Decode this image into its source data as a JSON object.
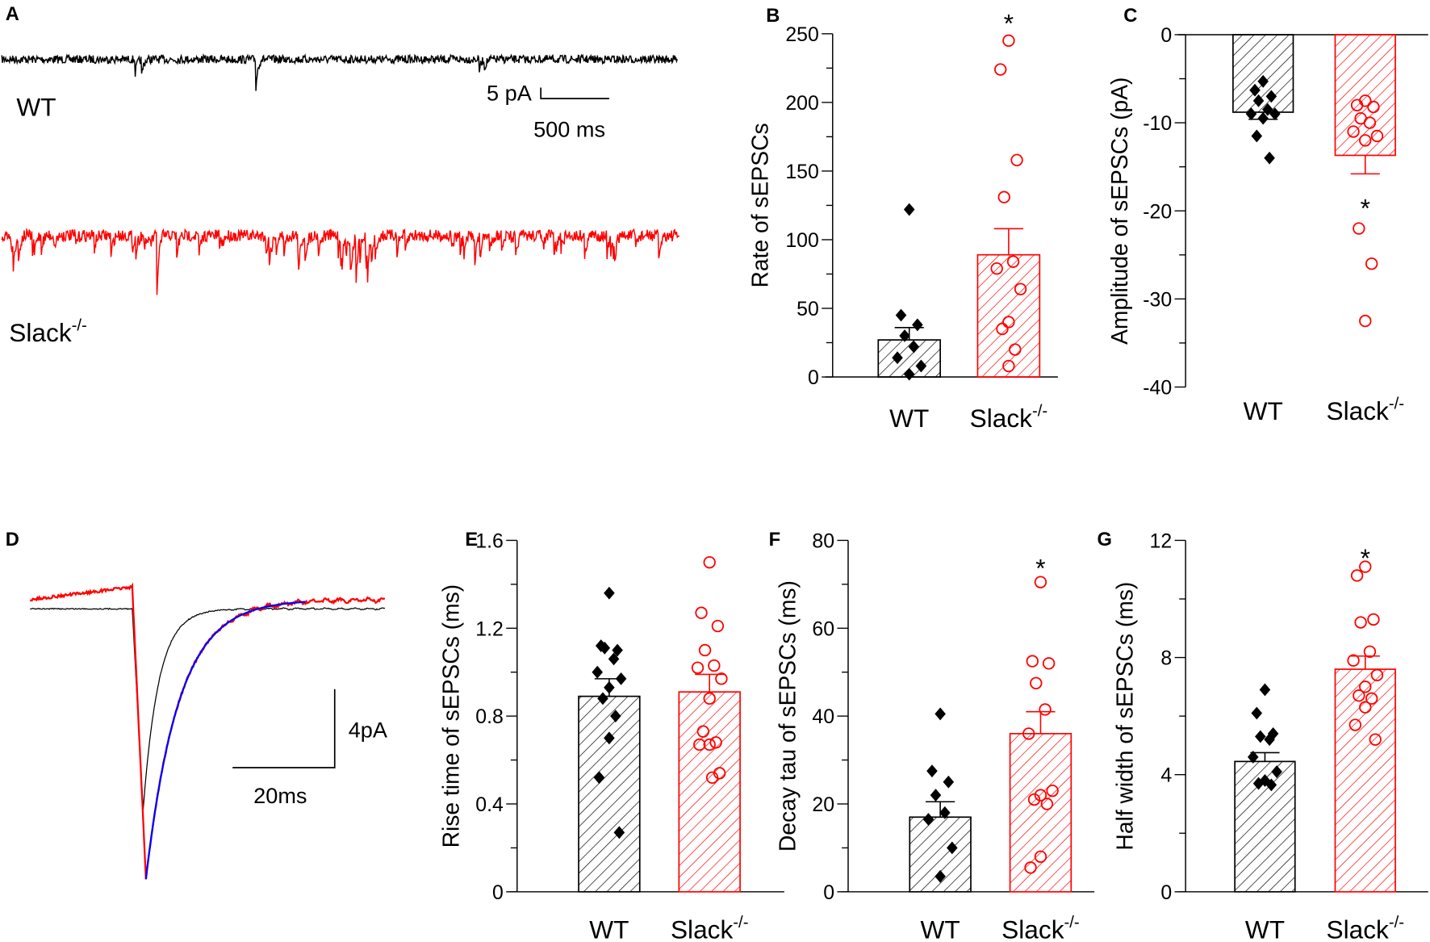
{
  "panel_A": {
    "letter": "A",
    "wt_label": "WT",
    "ko_label": "Slack",
    "ko_sup": "-/-",
    "scale_y": "5 pA",
    "scale_x": "500 ms",
    "colors": {
      "wt": "#000000",
      "ko": "#ff0000"
    }
  },
  "panel_D": {
    "letter": "D",
    "scale_y": "4pA",
    "scale_x": "20ms",
    "colors": {
      "wt": "#000000",
      "ko": "#ff0000",
      "fit": "#0000ff"
    }
  },
  "chart_data": [
    {
      "id": "B",
      "letter": "B",
      "type": "bar",
      "ylabel": "Rate of sEPSCs",
      "ylim": [
        0,
        250
      ],
      "yticks": [
        0,
        50,
        100,
        150,
        200,
        250
      ],
      "minor_step": 25,
      "categories": [
        {
          "name": "WT",
          "sup": ""
        },
        {
          "name": "Slack",
          "sup": "-/-"
        }
      ],
      "series": [
        {
          "name": "WT",
          "mean": 27,
          "sem_end": 36,
          "points": [
            122,
            45,
            38,
            30,
            22,
            14,
            8,
            2
          ],
          "color": "#000000"
        },
        {
          "name": "Slack-/-",
          "mean": 89,
          "sem_end": 108,
          "points": [
            245,
            224,
            158,
            131,
            84,
            79,
            64,
            40,
            35,
            20,
            8
          ],
          "color": "#ff0000"
        }
      ],
      "annotations": [
        {
          "text": "*",
          "series": 1,
          "at": 262
        }
      ]
    },
    {
      "id": "C",
      "letter": "C",
      "type": "bar",
      "ylabel": "Amplitude of sEPSCs (pA)",
      "ylim": [
        -40,
        0
      ],
      "yticks": [
        -40,
        -30,
        -20,
        -10,
        0
      ],
      "minor_step": 5,
      "categories": [
        {
          "name": "WT",
          "sup": ""
        },
        {
          "name": "Slack",
          "sup": "-/-"
        }
      ],
      "series": [
        {
          "name": "WT",
          "mean": -8.8,
          "sem_end": -9.6,
          "points": [
            -5.3,
            -6.3,
            -7,
            -7.5,
            -8.5,
            -9,
            -9,
            -9.5,
            -11.5,
            -14
          ],
          "color": "#000000"
        },
        {
          "name": "Slack-/-",
          "mean": -13.7,
          "sem_end": -15.8,
          "points": [
            -7.5,
            -8,
            -8.2,
            -9.5,
            -10,
            -11,
            -11.5,
            -12,
            -22,
            -26,
            -32.5
          ],
          "color": "#ff0000"
        }
      ],
      "annotations": [
        {
          "text": "*",
          "series": 1,
          "at": -19
        }
      ]
    },
    {
      "id": "E",
      "letter": "E",
      "type": "bar",
      "ylabel": "Rise time of sEPSCs (ms)",
      "ylim": [
        0,
        1.6
      ],
      "yticks": [
        0,
        0.4,
        0.8,
        1.2,
        1.6
      ],
      "minor_step": 0.2,
      "categories": [
        {
          "name": "WT",
          "sup": ""
        },
        {
          "name": "Slack",
          "sup": "-/-"
        }
      ],
      "series": [
        {
          "name": "WT",
          "mean": 0.89,
          "sem_end": 0.97,
          "points": [
            1.36,
            1.12,
            1.1,
            1.11,
            1.06,
            1.0,
            0.97,
            0.93,
            0.88,
            0.8,
            0.7,
            0.52,
            0.27
          ],
          "color": "#000000"
        },
        {
          "name": "Slack-/-",
          "mean": 0.91,
          "sem_end": 0.99,
          "points": [
            1.5,
            1.27,
            1.21,
            1.1,
            1.03,
            1.02,
            0.97,
            0.88,
            0.73,
            0.68,
            0.67,
            0.67,
            0.54,
            0.52
          ],
          "color": "#ff0000"
        }
      ],
      "annotations": []
    },
    {
      "id": "F",
      "letter": "F",
      "type": "bar",
      "ylabel": "Decay tau of sEPSCs (ms)",
      "ylim": [
        0,
        80
      ],
      "yticks": [
        0,
        20,
        40,
        60,
        80
      ],
      "minor_step": 10,
      "categories": [
        {
          "name": "WT",
          "sup": ""
        },
        {
          "name": "Slack",
          "sup": "-/-"
        }
      ],
      "series": [
        {
          "name": "WT",
          "mean": 17,
          "sem_end": 20.5,
          "points": [
            40.5,
            27.5,
            25,
            22,
            18,
            16.5,
            10,
            3.5
          ],
          "color": "#000000"
        },
        {
          "name": "Slack-/-",
          "mean": 36,
          "sem_end": 41,
          "points": [
            70.5,
            52.5,
            52,
            47.5,
            41.5,
            36,
            23,
            22,
            21,
            20,
            8,
            5.5
          ],
          "color": "#ff0000"
        }
      ],
      "annotations": [
        {
          "text": "*",
          "series": 1,
          "at": 75
        }
      ]
    },
    {
      "id": "G",
      "letter": "G",
      "type": "bar",
      "ylabel": "Half width of sEPSCs (ms)",
      "ylim": [
        0,
        12
      ],
      "yticks": [
        0,
        4,
        8,
        12
      ],
      "minor_step": 2,
      "categories": [
        {
          "name": "WT",
          "sup": ""
        },
        {
          "name": "Slack",
          "sup": "-/-"
        }
      ],
      "series": [
        {
          "name": "WT",
          "mean": 4.45,
          "sem_end": 4.75,
          "points": [
            6.9,
            6.1,
            5.4,
            5.3,
            5.2,
            4.6,
            4.1,
            3.8,
            3.7,
            3.65
          ],
          "color": "#000000"
        },
        {
          "name": "Slack-/-",
          "mean": 7.6,
          "sem_end": 8.05,
          "points": [
            11.1,
            10.8,
            9.3,
            9.2,
            8.2,
            7.9,
            7.4,
            7.0,
            6.7,
            6.6,
            6.3,
            5.7,
            5.2
          ],
          "color": "#ff0000"
        }
      ],
      "annotations": [
        {
          "text": "*",
          "series": 1,
          "at": 11.6
        }
      ]
    }
  ]
}
